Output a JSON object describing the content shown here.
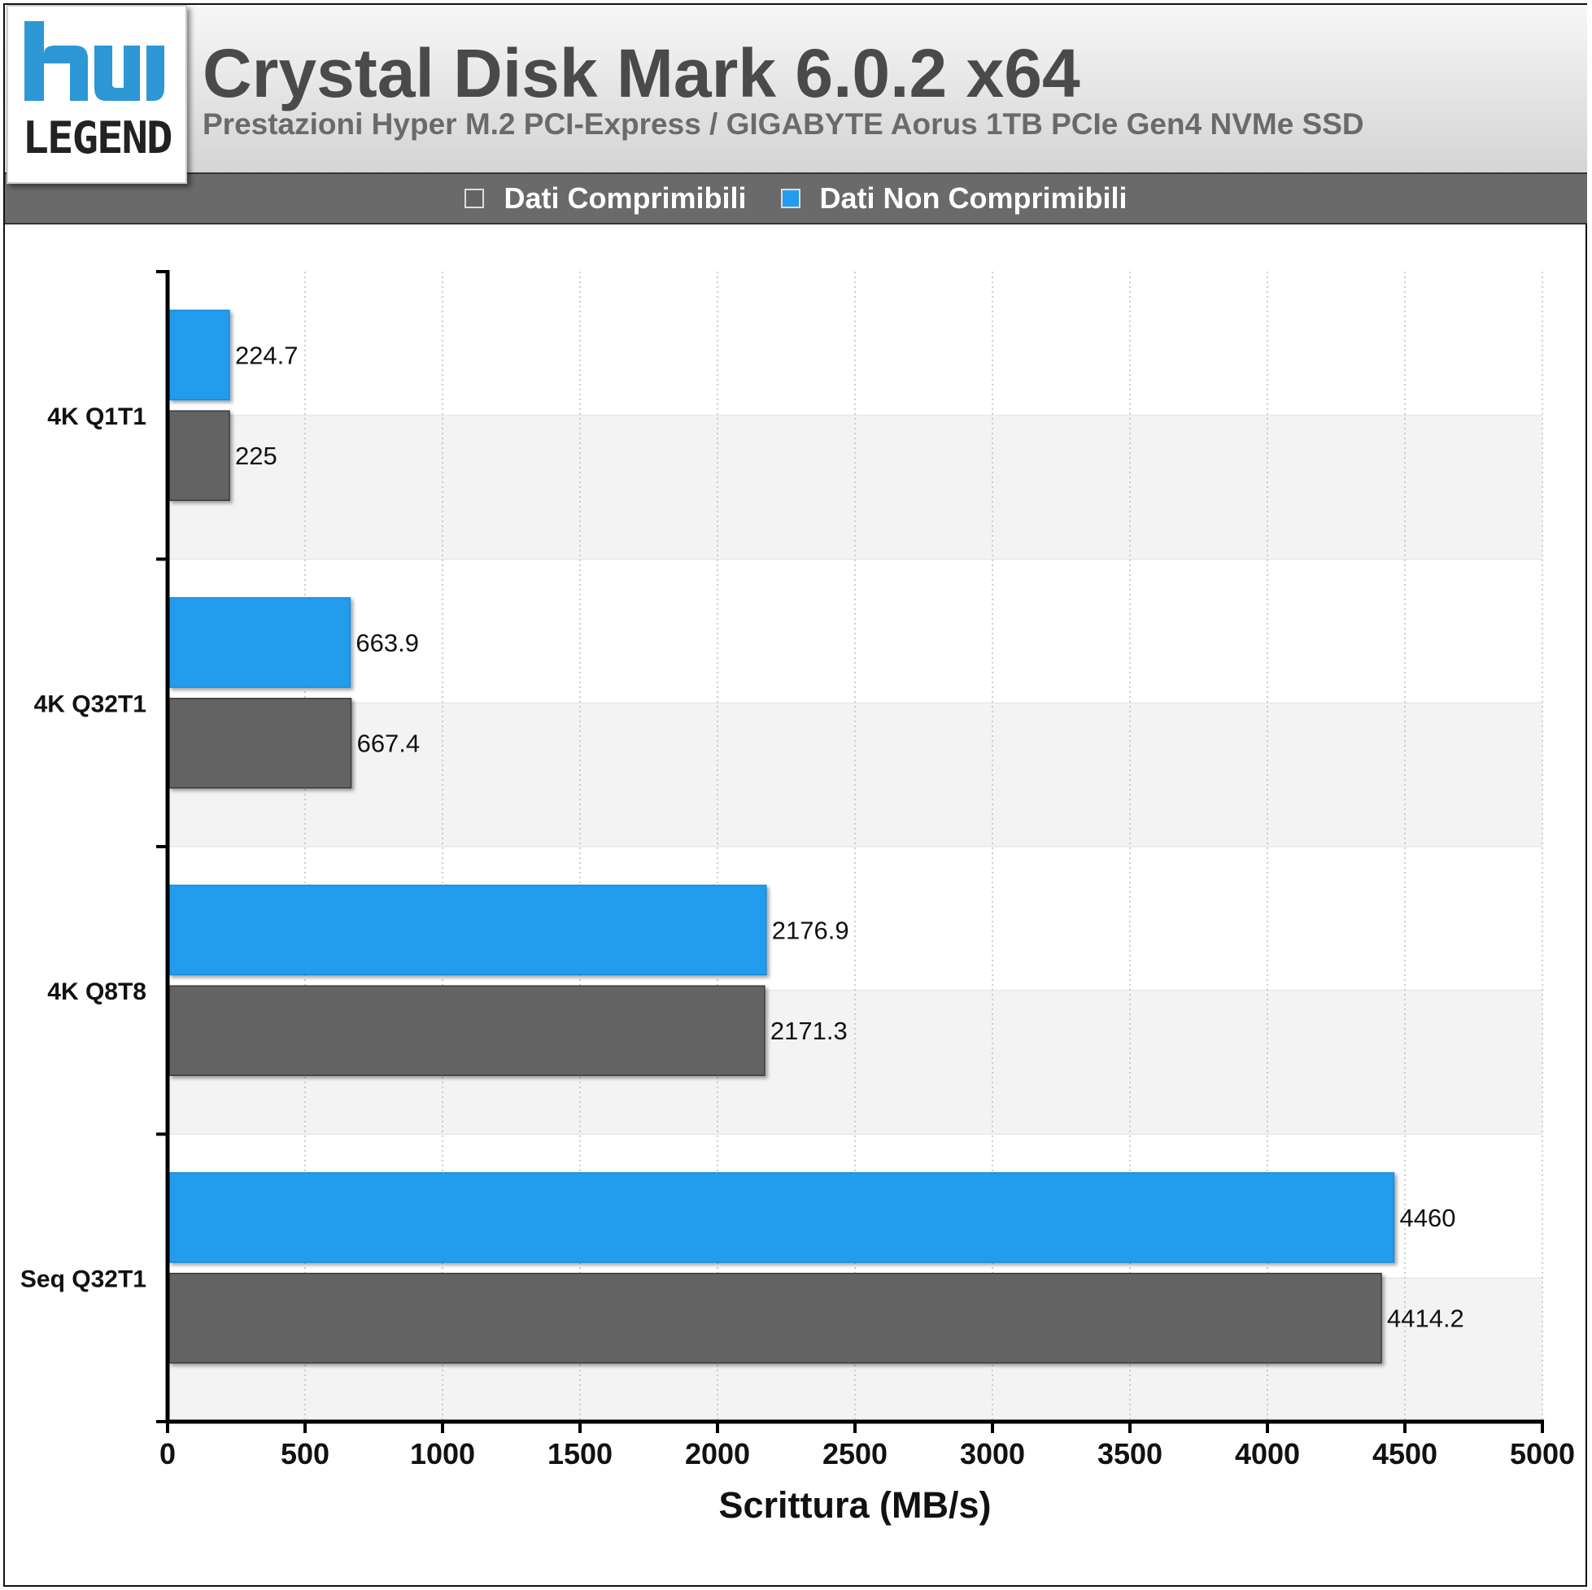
{
  "header": {
    "logo_text": "LEGEND",
    "title": "Crystal Disk Mark 6.0.2 x64",
    "subtitle": "Prestazioni Hyper M.2 PCI-Express / GIGABYTE Aorus 1TB PCIe Gen4 NVMe SSD"
  },
  "legend": [
    {
      "label": "Dati Comprimibili",
      "color": "#646464"
    },
    {
      "label": "Dati Non Comprimibili",
      "color": "#229ded"
    }
  ],
  "colors": {
    "accent_blue": "#229ded",
    "dark_gray": "#646464",
    "logo_blue": "#2e97d6"
  },
  "chart_data": {
    "type": "bar",
    "orientation": "horizontal",
    "categories": [
      "4K Q1T1",
      "4K Q32T1",
      "4K Q8T8",
      "Seq Q32T1"
    ],
    "series": [
      {
        "name": "Dati Non Comprimibili",
        "color": "#229ded",
        "values": [
          224.7,
          663.9,
          2176.9,
          4460
        ]
      },
      {
        "name": "Dati Comprimibili",
        "color": "#646464",
        "values": [
          225,
          667.4,
          2171.3,
          4414.2
        ]
      }
    ],
    "value_labels": [
      [
        "224.7",
        "663.9",
        "2176.9",
        "4460"
      ],
      [
        "225",
        "667.4",
        "2171.3",
        "4414.2"
      ]
    ],
    "xlabel": "Scrittura (MB/s)",
    "ylabel": "",
    "xlim": [
      0,
      5000
    ],
    "xticks": [
      0,
      500,
      1000,
      1500,
      2000,
      2500,
      3000,
      3500,
      4000,
      4500,
      5000
    ],
    "grid": true,
    "legend_position": "top-center"
  }
}
